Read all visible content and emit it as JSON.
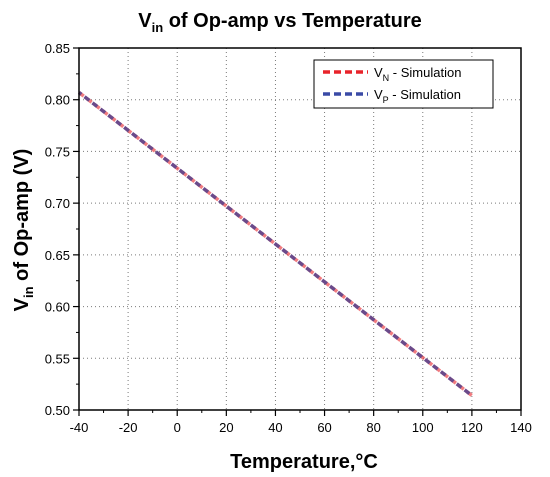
{
  "chart_data": {
    "type": "line",
    "title": {
      "main": "V",
      "sub": "in",
      "rest": " of Op-amp vs Temperature"
    },
    "xlabel": "Temperature,°C",
    "ylabel": {
      "main": "V",
      "sub": "in",
      "rest": " of Op-amp (V)"
    },
    "xlim": [
      -40,
      140
    ],
    "ylim": [
      0.5,
      0.85
    ],
    "xticks": [
      "-40",
      "-20",
      "0",
      "20",
      "40",
      "60",
      "80",
      "100",
      "120",
      "140"
    ],
    "yticks": [
      "0.50",
      "0.55",
      "0.60",
      "0.65",
      "0.70",
      "0.75",
      "0.80",
      "0.85"
    ],
    "grid": true,
    "legend_position": "top-right",
    "series": [
      {
        "name": "N",
        "label_main": "V",
        "label_sub": "N",
        "label_rest": " - Simulation",
        "color": "#e8232a",
        "x": [
          -40,
          120
        ],
        "y": [
          0.807,
          0.514
        ]
      },
      {
        "name": "P",
        "label_main": "V",
        "label_sub": "P",
        "label_rest": " - Simulation",
        "color": "#3a4aa6",
        "x": [
          -40,
          120
        ],
        "y": [
          0.807,
          0.514
        ]
      }
    ],
    "line_color": "#6a4a8a"
  }
}
